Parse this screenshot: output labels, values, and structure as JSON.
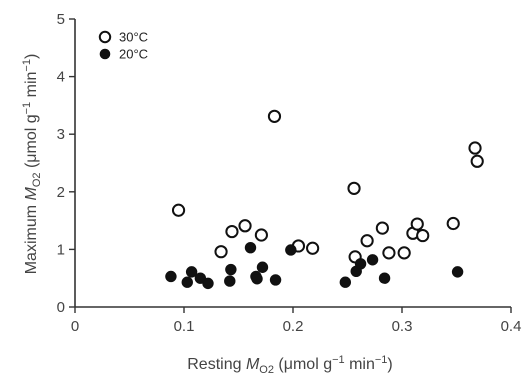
{
  "chart_data": {
    "type": "scatter",
    "title": "",
    "xlim": [
      0,
      0.4
    ],
    "ylim": [
      0,
      5
    ],
    "x_ticks": [
      "0",
      "0.1",
      "0.2",
      "0.3",
      "0.4"
    ],
    "y_ticks": [
      "0",
      "1",
      "2",
      "3",
      "4",
      "5"
    ],
    "grid": false,
    "legend_position": "top-left",
    "xlabel": {
      "prefix": "Resting ",
      "symbol": "M",
      "subscript": "O2",
      "unit_open": " (μmol g",
      "unit_exp1": "−1",
      "unit_mid": " min",
      "unit_exp2": "−1",
      "unit_close": ")"
    },
    "ylabel": {
      "prefix": "Maximum ",
      "symbol": "M",
      "subscript": "O2",
      "unit_open": " (μmol g",
      "unit_exp1": "−1",
      "unit_mid": " min",
      "unit_exp2": "−1",
      "unit_close": ")"
    },
    "series": [
      {
        "name": "30°C",
        "marker": "open-circle",
        "color": "#111111",
        "points": [
          [
            0.095,
            1.68
          ],
          [
            0.134,
            0.96
          ],
          [
            0.144,
            1.31
          ],
          [
            0.156,
            1.41
          ],
          [
            0.171,
            1.25
          ],
          [
            0.183,
            3.31
          ],
          [
            0.205,
            1.06
          ],
          [
            0.218,
            1.02
          ],
          [
            0.256,
            2.06
          ],
          [
            0.257,
            0.87
          ],
          [
            0.268,
            1.15
          ],
          [
            0.282,
            1.37
          ],
          [
            0.288,
            0.94
          ],
          [
            0.302,
            0.94
          ],
          [
            0.31,
            1.28
          ],
          [
            0.314,
            1.44
          ],
          [
            0.319,
            1.24
          ],
          [
            0.347,
            1.45
          ],
          [
            0.367,
            2.76
          ],
          [
            0.369,
            2.53
          ]
        ]
      },
      {
        "name": "20°C",
        "marker": "filled-circle",
        "color": "#111111",
        "points": [
          [
            0.088,
            0.53
          ],
          [
            0.103,
            0.43
          ],
          [
            0.107,
            0.61
          ],
          [
            0.115,
            0.5
          ],
          [
            0.122,
            0.41
          ],
          [
            0.142,
            0.45
          ],
          [
            0.143,
            0.65
          ],
          [
            0.161,
            1.03
          ],
          [
            0.166,
            0.53
          ],
          [
            0.167,
            0.49
          ],
          [
            0.172,
            0.69
          ],
          [
            0.184,
            0.47
          ],
          [
            0.198,
            0.99
          ],
          [
            0.248,
            0.43
          ],
          [
            0.258,
            0.62
          ],
          [
            0.262,
            0.75
          ],
          [
            0.273,
            0.82
          ],
          [
            0.284,
            0.5
          ],
          [
            0.351,
            0.61
          ]
        ]
      }
    ]
  }
}
